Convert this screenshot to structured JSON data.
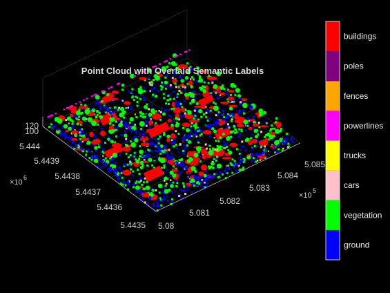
{
  "chart_data": {
    "type": "scatter",
    "title": "Point Cloud with Overlaid Semantic Labels",
    "x_axis": {
      "ticks": [
        "5.08",
        "5.081",
        "5.082",
        "5.083",
        "5.084",
        "5.085"
      ],
      "values": [
        508000,
        508100,
        508200,
        508300,
        508400,
        508500
      ],
      "multiplier": "×10",
      "exponent": "5"
    },
    "y_axis": {
      "ticks": [
        "5.4435",
        "5.4436",
        "5.4437",
        "5.4438",
        "5.4439",
        "5.444"
      ],
      "values": [
        5443500,
        5443600,
        5443700,
        5443800,
        5443900,
        5444000
      ],
      "multiplier": "×10",
      "exponent": "6"
    },
    "z_axis": {
      "ticks": [
        "100",
        "120"
      ],
      "values": [
        100,
        120
      ]
    },
    "colorbar": {
      "categories": [
        {
          "label": "ground",
          "color": "#0000ff"
        },
        {
          "label": "vegetation",
          "color": "#00ff00"
        },
        {
          "label": "cars",
          "color": "#ffc0cb"
        },
        {
          "label": "trucks",
          "color": "#ffff00"
        },
        {
          "label": "powerlines",
          "color": "#ff00ff"
        },
        {
          "label": "fences",
          "color": "#ffa500"
        },
        {
          "label": "poles",
          "color": "#800080"
        },
        {
          "label": "buildings",
          "color": "#ff0000"
        }
      ]
    },
    "grid": true,
    "background": "#000000"
  }
}
